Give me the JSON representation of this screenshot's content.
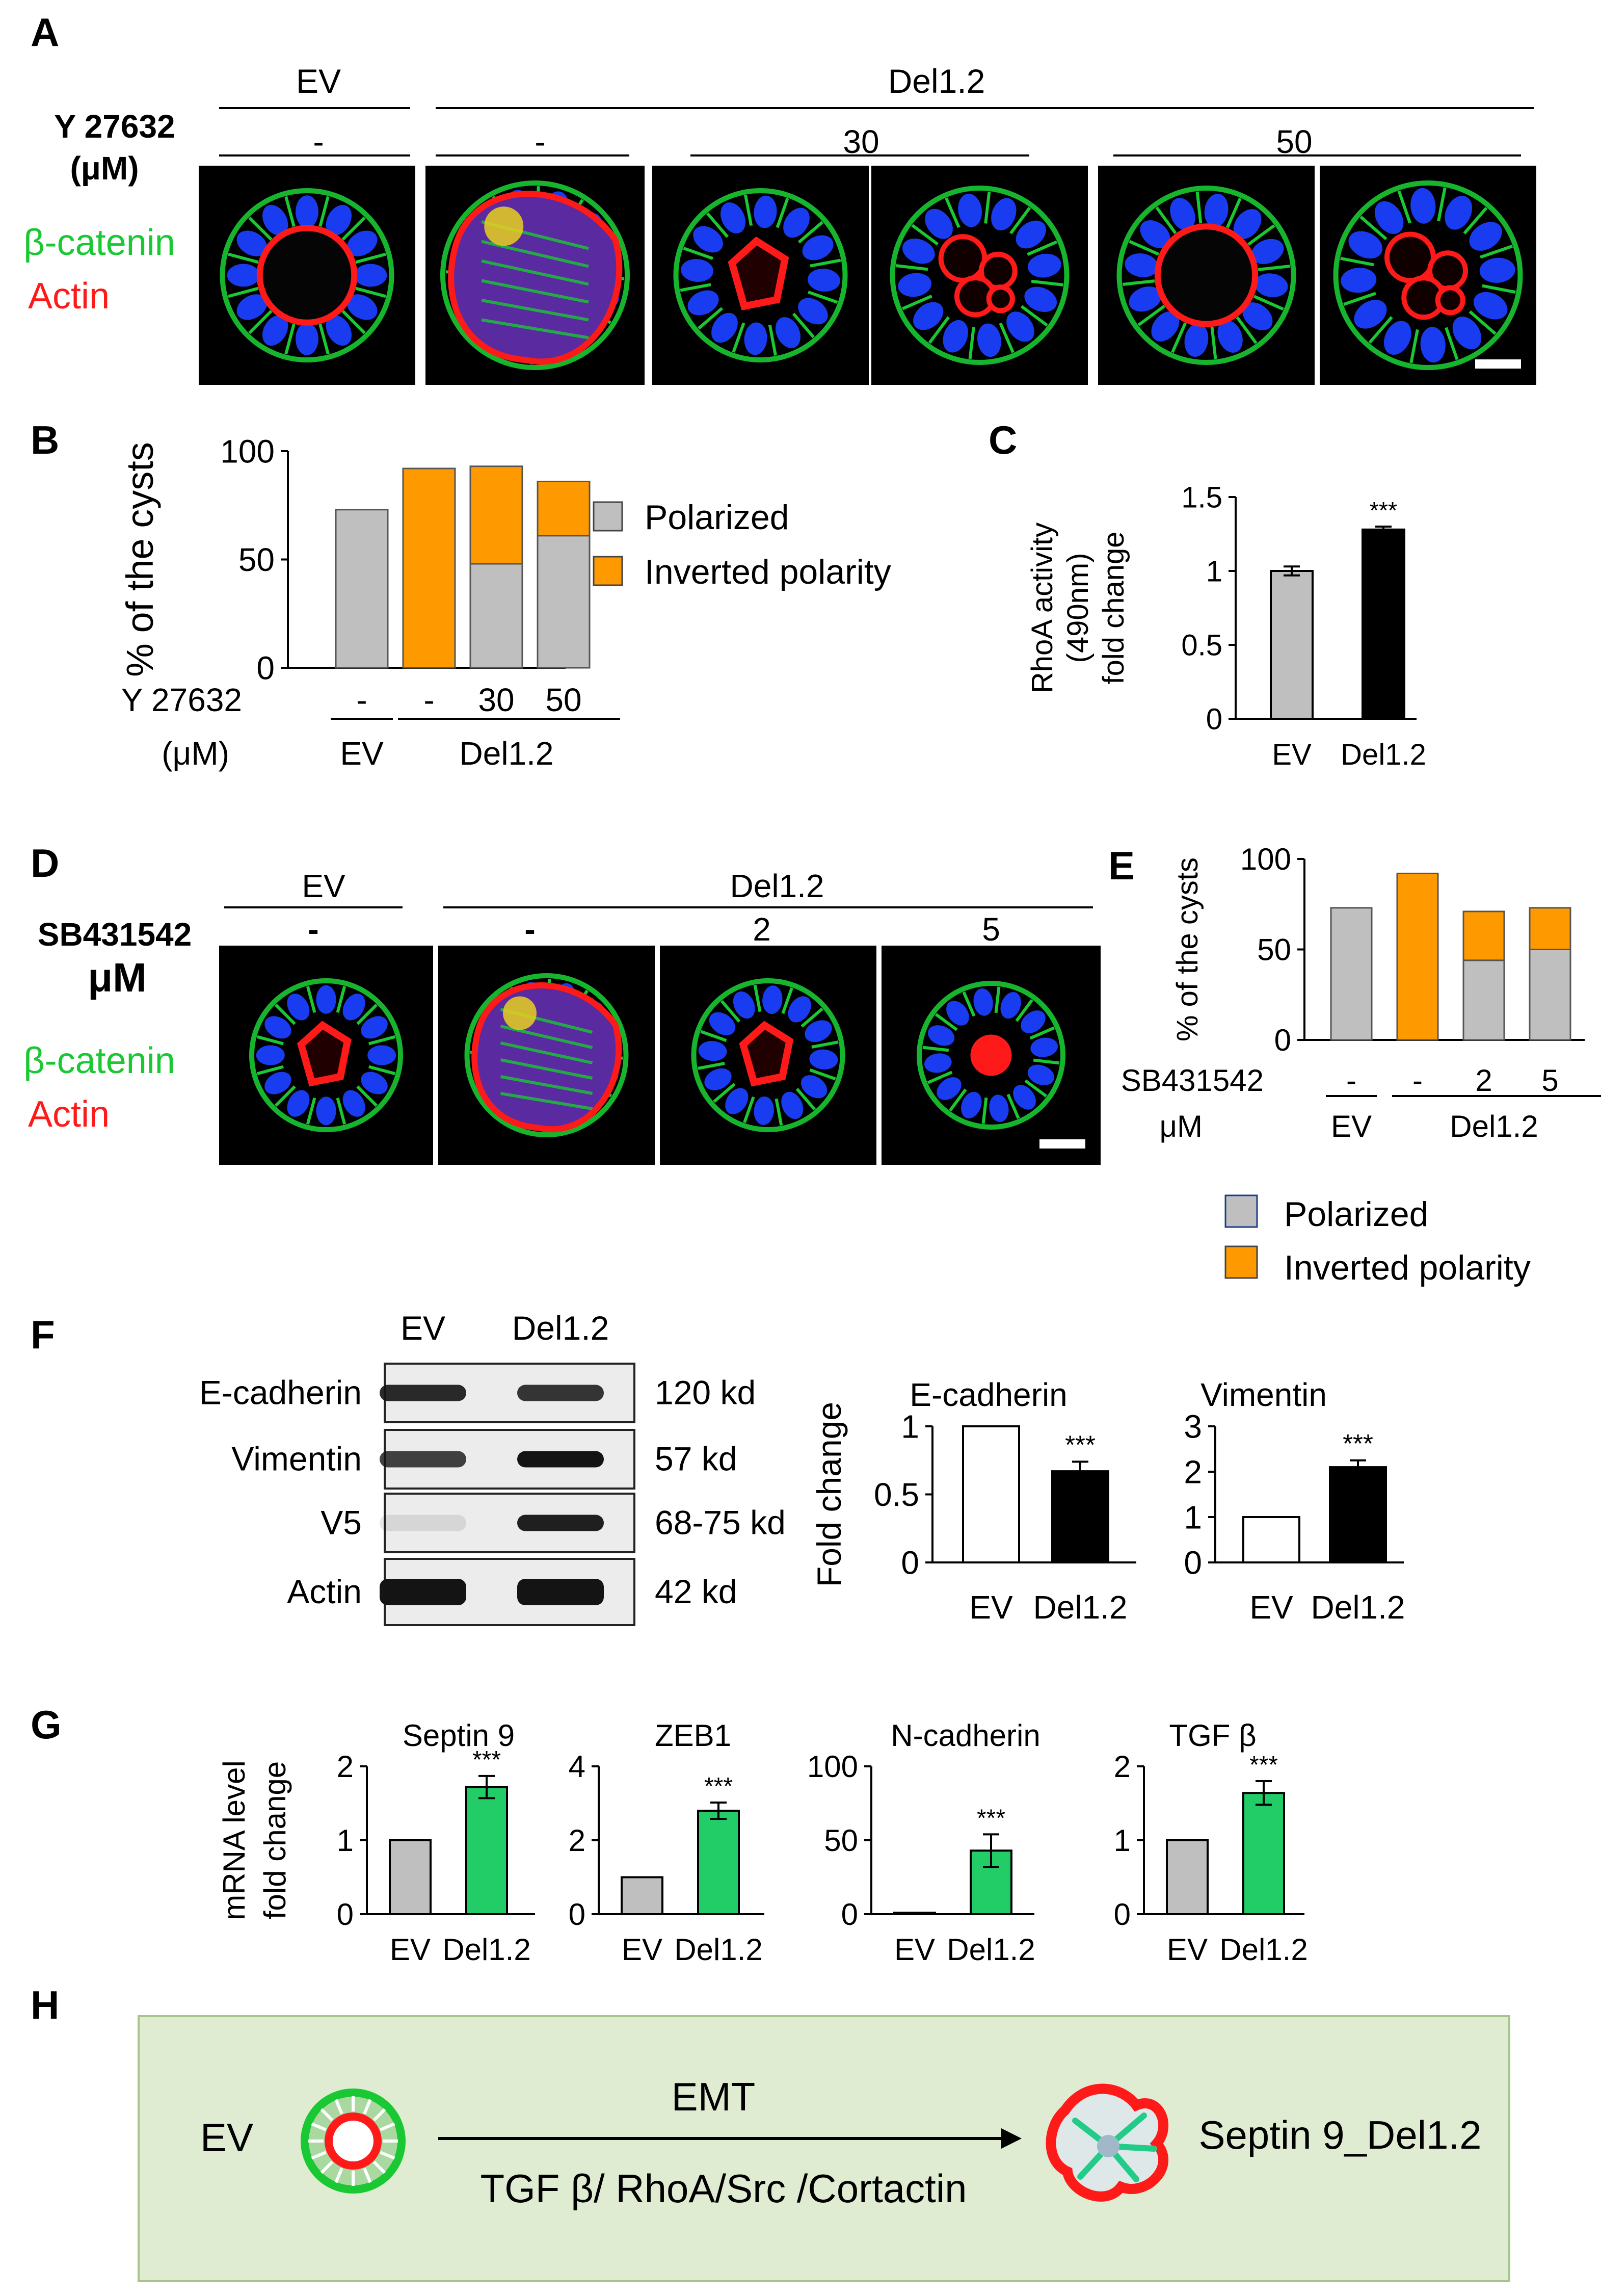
{
  "colors": {
    "grey": "#bfbfbf",
    "orange": "#ff9900",
    "green": "#22cc66",
    "black": "#000000",
    "white": "#ffffff",
    "red": "#ff1a1a",
    "cell_green": "#19c832",
    "nucleus_blue": "#1a3cf0",
    "panel_h_bg": "#e0ecd2",
    "panel_h_border": "#a6c48c"
  },
  "panel_labels": {
    "A": "A",
    "B": "B",
    "C": "C",
    "D": "D",
    "E": "E",
    "F": "F",
    "G": "G",
    "H": "H"
  },
  "panelA": {
    "group_ev": "EV",
    "group_del": "Del1.2",
    "treatment_line1": "Y 27632",
    "treatment_line2": "(μM)",
    "doses": {
      "ev": "-",
      "del_none": "-",
      "del_30": "30",
      "del_50": "50"
    },
    "stain1": "β-catenin",
    "stain2": "Actin"
  },
  "panelD": {
    "group_ev": "EV",
    "group_del": "Del1.2",
    "treatment_line1": "SB431542",
    "treatment_line2": "μM",
    "doses": {
      "ev": "-",
      "del_none": "-",
      "del_2": "2",
      "del_5": "5"
    },
    "stain1": "β-catenin",
    "stain2": "Actin"
  },
  "legend": {
    "polarized": "Polarized",
    "inverted": "Inverted  polarity"
  },
  "legendE": {
    "polarized": "Polarized",
    "inverted": "Inverted  polarity"
  },
  "panelF": {
    "col_ev": "EV",
    "col_del": "Del1.2",
    "rows": [
      {
        "protein": "E-cadherin",
        "size": "120 kd"
      },
      {
        "protein": "Vimentin",
        "size": "57 kd"
      },
      {
        "protein": "V5",
        "size": "68-75 kd"
      },
      {
        "protein": "Actin",
        "size": "42 kd"
      }
    ]
  },
  "panelH": {
    "left_label": "EV",
    "arrow_top": "EMT",
    "arrow_bottom": "TGF β/ RhoA/Src /Cortactin",
    "right_label": "Septin 9_Del1.2"
  },
  "chart_data": [
    {
      "id": "B",
      "type": "bar",
      "stacked": true,
      "ylabel": "% of the cysts",
      "ylim": [
        0,
        100
      ],
      "yticks": [
        0,
        50,
        100
      ],
      "xlabel_line1": "Y 27632",
      "xlabel_line2": "(μM)",
      "categories": [
        "-",
        "-",
        "30",
        "50"
      ],
      "groups": [
        {
          "name": "EV",
          "n": 1
        },
        {
          "name": "Del1.2",
          "n": 3
        }
      ],
      "series": [
        {
          "name": "Polarized",
          "color": "grey",
          "values": [
            73,
            0,
            48,
            61
          ]
        },
        {
          "name": "Inverted polarity",
          "color": "orange",
          "values": [
            0,
            92,
            45,
            25
          ]
        }
      ]
    },
    {
      "id": "C",
      "type": "bar",
      "ylabel_lines": [
        "RhoA activity",
        "(490nm)",
        "fold change"
      ],
      "ylim": [
        0,
        1.5
      ],
      "yticks": [
        "0",
        "0.5",
        "1",
        "1.5"
      ],
      "categories": [
        "EV",
        "Del1.2"
      ],
      "values": [
        1.0,
        1.28
      ],
      "errors": [
        0.03,
        0.02
      ],
      "colors": [
        "grey",
        "black"
      ],
      "significance": [
        "",
        "***"
      ]
    },
    {
      "id": "E",
      "type": "bar",
      "stacked": true,
      "ylabel": "% of the cysts",
      "ylim": [
        0,
        100
      ],
      "yticks": [
        0,
        50,
        100
      ],
      "xlabel_line1": "SB431542",
      "xlabel_line2": "μM",
      "categories": [
        "-",
        "-",
        "2",
        "5"
      ],
      "groups": [
        {
          "name": "EV",
          "n": 1
        },
        {
          "name": "Del1.2",
          "n": 3
        }
      ],
      "series": [
        {
          "name": "Polarized",
          "color": "grey",
          "values": [
            73,
            0,
            44,
            50
          ]
        },
        {
          "name": "Inverted polarity",
          "color": "orange",
          "values": [
            0,
            92,
            27,
            23
          ]
        }
      ]
    },
    {
      "id": "F1",
      "type": "bar",
      "title": "E-cadherin",
      "ylabel": "Fold change",
      "ylim": [
        0,
        1
      ],
      "yticks": [
        "0",
        "0.5",
        "1"
      ],
      "categories": [
        "EV",
        "Del1.2"
      ],
      "values": [
        1.0,
        0.67
      ],
      "errors": [
        0,
        0.07
      ],
      "colors": [
        "white",
        "black"
      ],
      "significance": [
        "",
        "***"
      ]
    },
    {
      "id": "F2",
      "type": "bar",
      "title": "Vimentin",
      "ylim": [
        0,
        3
      ],
      "yticks": [
        "0",
        "1",
        "2",
        "3"
      ],
      "categories": [
        "EV",
        "Del1.2"
      ],
      "values": [
        1.0,
        2.1
      ],
      "errors": [
        0,
        0.15
      ],
      "colors": [
        "white",
        "black"
      ],
      "significance": [
        "",
        "***"
      ]
    },
    {
      "id": "G1",
      "type": "bar",
      "title": "Septin 9",
      "ylabel_lines": [
        "mRNA  level",
        "fold change"
      ],
      "ylim": [
        0,
        2
      ],
      "yticks": [
        "0",
        "1",
        "2"
      ],
      "categories": [
        "EV",
        "Del1.2"
      ],
      "values": [
        1.0,
        1.72
      ],
      "errors": [
        0,
        0.15
      ],
      "colors": [
        "grey",
        "green"
      ],
      "significance": [
        "",
        "***"
      ]
    },
    {
      "id": "G2",
      "type": "bar",
      "title": "ZEB1",
      "ylim": [
        0,
        4
      ],
      "yticks": [
        "0",
        "2",
        "4"
      ],
      "categories": [
        "EV",
        "Del1.2"
      ],
      "values": [
        1.0,
        2.8
      ],
      "errors": [
        0,
        0.22
      ],
      "colors": [
        "grey",
        "green"
      ],
      "significance": [
        "",
        "***"
      ]
    },
    {
      "id": "G3",
      "type": "bar",
      "title": "N-cadherin",
      "ylim": [
        0,
        100
      ],
      "yticks": [
        "0",
        "50",
        "100"
      ],
      "categories": [
        "EV",
        "Del1.2"
      ],
      "values": [
        1.0,
        43
      ],
      "errors": [
        0,
        11
      ],
      "colors": [
        "grey",
        "green"
      ],
      "significance": [
        "",
        "***"
      ]
    },
    {
      "id": "G4",
      "type": "bar",
      "title": "TGF β",
      "ylim": [
        0,
        2
      ],
      "yticks": [
        "0",
        "1",
        "2"
      ],
      "categories": [
        "EV",
        "Del1.2"
      ],
      "values": [
        1.0,
        1.64
      ],
      "errors": [
        0,
        0.16
      ],
      "colors": [
        "grey",
        "green"
      ],
      "significance": [
        "",
        "***"
      ]
    }
  ]
}
